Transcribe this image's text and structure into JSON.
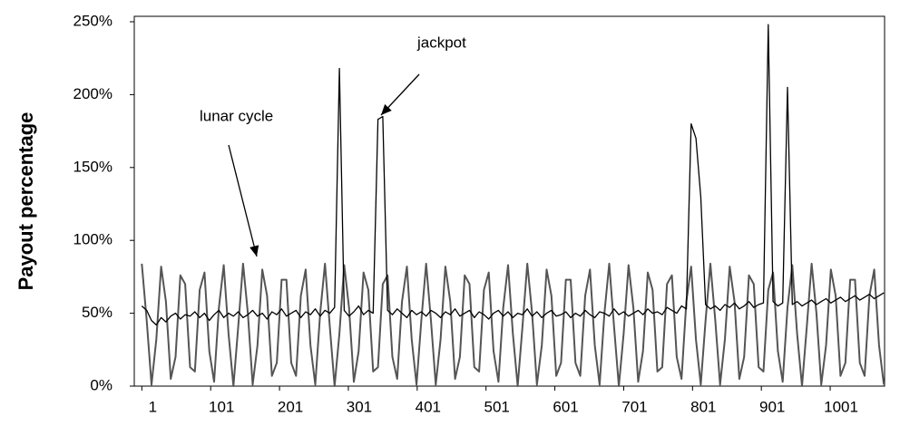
{
  "chart_data": {
    "type": "line",
    "y_label": "Payout percentage",
    "annotations": [
      "jackpot",
      "lunar cycle"
    ],
    "x": [
      1,
      8,
      15,
      22,
      29,
      36,
      43,
      50,
      57,
      64,
      71,
      78,
      85,
      92,
      99,
      106,
      113,
      120,
      127,
      134,
      141,
      148,
      155,
      162,
      169,
      176,
      183,
      190,
      197,
      204,
      211,
      218,
      225,
      232,
      239,
      246,
      253,
      260,
      267,
      274,
      281,
      288,
      295,
      302,
      309,
      316,
      323,
      330,
      337,
      344,
      351,
      358,
      365,
      372,
      379,
      386,
      393,
      400,
      407,
      414,
      421,
      428,
      435,
      442,
      449,
      456,
      463,
      470,
      477,
      484,
      491,
      498,
      505,
      512,
      519,
      526,
      533,
      540,
      547,
      554,
      561,
      568,
      575,
      582,
      589,
      596,
      603,
      610,
      617,
      624,
      631,
      638,
      645,
      652,
      659,
      666,
      673,
      680,
      687,
      694,
      701,
      708,
      715,
      722,
      729,
      736,
      743,
      750,
      757,
      764,
      771,
      778,
      785,
      792,
      799,
      806,
      813,
      820,
      827,
      834,
      841,
      848,
      855,
      862,
      869,
      876,
      883,
      890,
      897,
      904,
      911,
      918,
      925,
      932,
      939,
      946,
      953,
      960,
      967,
      974,
      981,
      988,
      995,
      1002,
      1009,
      1016,
      1023,
      1030,
      1037,
      1044,
      1051,
      1058,
      1065,
      1072,
      1079
    ],
    "series": [
      {
        "color": "#555555",
        "values": [
          84,
          45,
          1,
          32,
          82,
          58,
          5,
          20,
          76,
          70,
          13,
          10,
          66,
          78,
          24,
          3,
          54,
          83,
          36,
          0,
          41,
          84,
          50,
          1,
          28,
          80,
          62,
          7,
          16,
          73,
          73,
          16,
          7,
          62,
          80,
          28,
          1,
          50,
          84,
          41,
          0,
          36,
          83,
          54,
          3,
          24,
          78,
          66,
          10,
          13,
          70,
          76,
          20,
          5,
          58,
          82,
          32,
          1,
          45,
          84,
          45,
          1,
          32,
          82,
          58,
          5,
          20,
          76,
          70,
          13,
          10,
          66,
          78,
          24,
          3,
          54,
          83,
          36,
          0,
          41,
          84,
          50,
          1,
          28,
          80,
          62,
          7,
          16,
          73,
          73,
          16,
          7,
          62,
          80,
          28,
          1,
          50,
          84,
          41,
          0,
          36,
          83,
          54,
          3,
          24,
          78,
          66,
          10,
          13,
          70,
          76,
          20,
          5,
          58,
          82,
          32,
          1,
          45,
          84,
          45,
          1,
          32,
          82,
          58,
          5,
          20,
          76,
          70,
          13,
          10,
          66,
          78,
          24,
          3,
          54,
          83,
          36,
          0,
          41,
          84,
          50,
          1,
          28,
          80,
          62,
          7,
          16,
          73,
          73,
          16,
          7,
          62,
          80,
          28,
          1
        ]
      },
      {
        "color": "#000000",
        "values": [
          55,
          52,
          45,
          42,
          47,
          44,
          48,
          50,
          46,
          49,
          48,
          51,
          47,
          50,
          45,
          49,
          52,
          47,
          50,
          48,
          51,
          47,
          49,
          52,
          48,
          50,
          46,
          51,
          49,
          53,
          48,
          50,
          52,
          47,
          51,
          49,
          53,
          48,
          52,
          50,
          54,
          218,
          52,
          48,
          51,
          55,
          49,
          52,
          50,
          183,
          185,
          52,
          49,
          53,
          50,
          47,
          52,
          49,
          51,
          48,
          52,
          50,
          47,
          51,
          49,
          53,
          48,
          50,
          52,
          47,
          51,
          49,
          46,
          50,
          52,
          48,
          51,
          47,
          50,
          49,
          53,
          48,
          51,
          47,
          50,
          52,
          48,
          49,
          51,
          47,
          50,
          48,
          52,
          49,
          47,
          51,
          50,
          48,
          53,
          49,
          51,
          48,
          50,
          52,
          49,
          53,
          50,
          51,
          49,
          54,
          52,
          50,
          55,
          53,
          180,
          170,
          130,
          56,
          53,
          55,
          52,
          56,
          54,
          57,
          53,
          55,
          58,
          54,
          56,
          57,
          248,
          58,
          55,
          57,
          205,
          56,
          58,
          55,
          57,
          59,
          56,
          58,
          60,
          57,
          59,
          61,
          58,
          60,
          62,
          59,
          61,
          63,
          60,
          62,
          64
        ]
      }
    ],
    "xlim": [
      -10,
      1080
    ],
    "xticks": [
      1,
      101,
      201,
      301,
      401,
      501,
      601,
      701,
      801,
      901,
      1001
    ],
    "ylim": [
      0,
      250
    ],
    "yticks": [
      {
        "value": 0,
        "label": "0%"
      },
      {
        "value": 50,
        "label": "50%"
      },
      {
        "value": 100,
        "label": "100%"
      },
      {
        "value": 150,
        "label": "150%"
      },
      {
        "value": 200,
        "label": "200%"
      },
      {
        "value": 250,
        "label": "250%"
      }
    ]
  }
}
